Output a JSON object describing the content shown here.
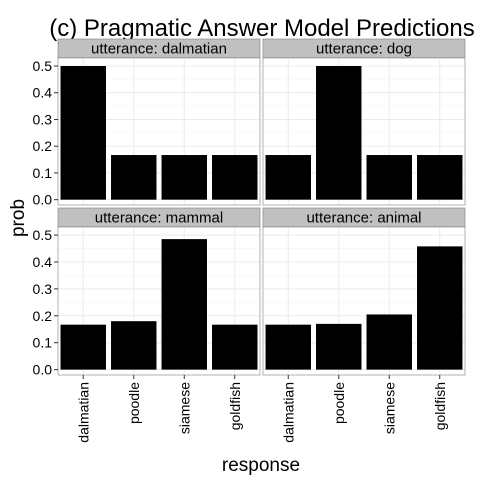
{
  "chart_data": {
    "type": "bar",
    "title": "(c) Pragmatic Answer Model Predictions",
    "xlabel": "response",
    "ylabel": "prob",
    "categories": [
      "dalmatian",
      "poodle",
      "siamese",
      "goldfish"
    ],
    "ylim": [
      -0.02,
      0.53
    ],
    "yticks": [
      0.0,
      0.1,
      0.2,
      0.3,
      0.4,
      0.5
    ],
    "ytick_labels": [
      "0.0",
      "0.1",
      "0.2",
      "0.3",
      "0.4",
      "0.5"
    ],
    "grid": true,
    "legend": "none",
    "facet_prefix": "utterance: ",
    "panels": [
      {
        "strip": "utterance: dalmatian",
        "values": [
          0.5,
          0.167,
          0.167,
          0.167
        ]
      },
      {
        "strip": "utterance: dog",
        "values": [
          0.167,
          0.5,
          0.167,
          0.167
        ]
      },
      {
        "strip": "utterance: mammal",
        "values": [
          0.167,
          0.18,
          0.485,
          0.167
        ]
      },
      {
        "strip": "utterance: animal",
        "values": [
          0.167,
          0.17,
          0.205,
          0.458
        ]
      }
    ]
  },
  "colors": {
    "bar": "#000000",
    "panel_background": "#ffffff",
    "panel_border": "#7f7f7f",
    "grid_major": "#ebebeb",
    "grid_minor": "#f5f5f5",
    "strip_background": "#c0c0c0",
    "strip_border": "#7f7f7f"
  }
}
